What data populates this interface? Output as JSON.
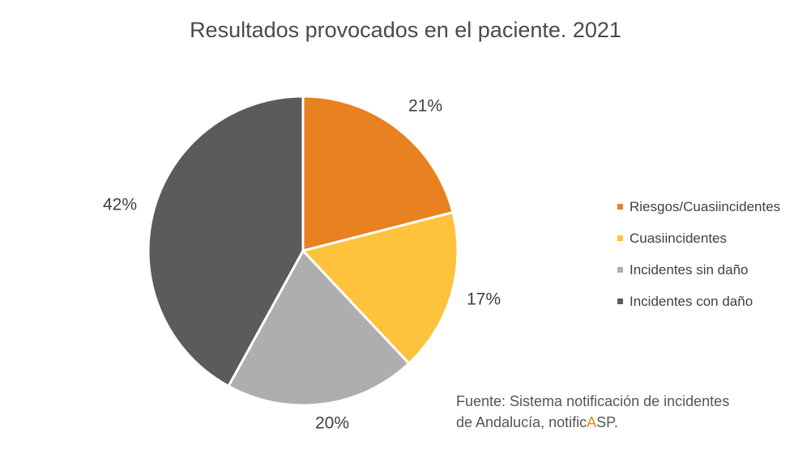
{
  "chart_data": {
    "type": "pie",
    "title": "Resultados provocados en el paciente. 2021",
    "slices": [
      {
        "label": "Riesgos/Cuasiincidentes",
        "value": 21,
        "value_label": "21%",
        "color": "#E8811F"
      },
      {
        "label": "Cuasiincidentes",
        "value": 17,
        "value_label": "17%",
        "color": "#FFC23C"
      },
      {
        "label": "Incidentes sin daño",
        "value": 20,
        "value_label": "20%",
        "color": "#AEADB0"
      },
      {
        "label": "Incidentes con daño",
        "value": 42,
        "value_label": "42%",
        "color": "#5B5B5B"
      }
    ],
    "legend_position": "right"
  },
  "source": {
    "line1": "Fuente: Sistema notificación de incidentes",
    "line2_prefix": "de Andalucía, notific",
    "line2_highlight": "A",
    "line2_suffix": "SP."
  }
}
